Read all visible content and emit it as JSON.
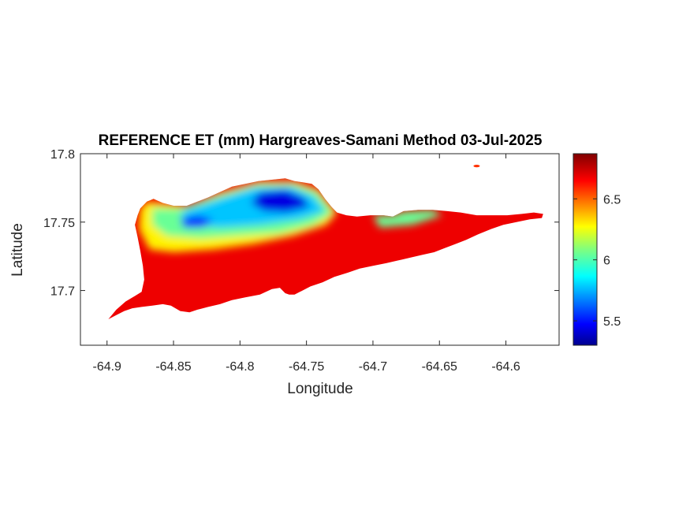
{
  "map": {
    "title": "REFERENCE ET (mm) Hargreaves-Samani Method  03-Jul-2025",
    "xlabel": "Longitude",
    "ylabel": "Latitude",
    "xlim": [
      -64.92,
      -64.56
    ],
    "ylim": [
      17.66,
      17.8
    ],
    "xticks": [
      -64.9,
      -64.85,
      -64.8,
      -64.75,
      -64.7,
      -64.65,
      -64.6
    ],
    "xtick_labels": [
      "-64.9",
      "-64.85",
      "-64.8",
      "-64.75",
      "-64.7",
      "-64.65",
      "-64.6"
    ],
    "yticks": [
      17.7,
      17.75,
      17.8
    ],
    "ytick_labels": [
      "17.7",
      "17.75",
      "17.8"
    ],
    "colormap": "jet",
    "colorbar": {
      "clim": [
        5.3,
        6.87
      ],
      "ticks": [
        5.5,
        6,
        6.5
      ],
      "tick_labels": [
        "5.5",
        "6",
        "6.5"
      ]
    },
    "island_outline": [
      [
        -64.899,
        17.679
      ],
      [
        -64.893,
        17.686
      ],
      [
        -64.886,
        17.692
      ],
      [
        -64.879,
        17.696
      ],
      [
        -64.874,
        17.699
      ],
      [
        -64.872,
        17.708
      ],
      [
        -64.873,
        17.718
      ],
      [
        -64.875,
        17.729
      ],
      [
        -64.877,
        17.739
      ],
      [
        -64.879,
        17.748
      ],
      [
        -64.877,
        17.755
      ],
      [
        -64.875,
        17.76
      ],
      [
        -64.87,
        17.765
      ],
      [
        -64.865,
        17.767
      ],
      [
        -64.858,
        17.764
      ],
      [
        -64.85,
        17.762
      ],
      [
        -64.84,
        17.762
      ],
      [
        -64.832,
        17.765
      ],
      [
        -64.824,
        17.768
      ],
      [
        -64.815,
        17.772
      ],
      [
        -64.806,
        17.776
      ],
      [
        -64.796,
        17.778
      ],
      [
        -64.786,
        17.78
      ],
      [
        -64.776,
        17.781
      ],
      [
        -64.766,
        17.782
      ],
      [
        -64.759,
        17.78
      ],
      [
        -64.752,
        17.779
      ],
      [
        -64.746,
        17.778
      ],
      [
        -64.741,
        17.774
      ],
      [
        -64.736,
        17.767
      ],
      [
        -64.731,
        17.761
      ],
      [
        -64.727,
        17.757
      ],
      [
        -64.72,
        17.755
      ],
      [
        -64.712,
        17.754
      ],
      [
        -64.702,
        17.755
      ],
      [
        -64.692,
        17.755
      ],
      [
        -64.685,
        17.754
      ],
      [
        -64.677,
        17.758
      ],
      [
        -64.666,
        17.759
      ],
      [
        -64.655,
        17.759
      ],
      [
        -64.644,
        17.758
      ],
      [
        -64.634,
        17.757
      ],
      [
        -64.622,
        17.755
      ],
      [
        -64.61,
        17.755
      ],
      [
        -64.599,
        17.755
      ],
      [
        -64.588,
        17.756
      ],
      [
        -64.579,
        17.757
      ],
      [
        -64.572,
        17.756
      ],
      [
        -64.573,
        17.753
      ],
      [
        -64.582,
        17.752
      ],
      [
        -64.592,
        17.75
      ],
      [
        -64.602,
        17.748
      ],
      [
        -64.611,
        17.745
      ],
      [
        -64.621,
        17.741
      ],
      [
        -64.63,
        17.737
      ],
      [
        -64.638,
        17.734
      ],
      [
        -64.646,
        17.731
      ],
      [
        -64.654,
        17.728
      ],
      [
        -64.663,
        17.726
      ],
      [
        -64.672,
        17.724
      ],
      [
        -64.681,
        17.722
      ],
      [
        -64.69,
        17.72
      ],
      [
        -64.7,
        17.718
      ],
      [
        -64.71,
        17.716
      ],
      [
        -64.719,
        17.713
      ],
      [
        -64.729,
        17.71
      ],
      [
        -64.738,
        17.706
      ],
      [
        -64.747,
        17.703
      ],
      [
        -64.753,
        17.7
      ],
      [
        -64.759,
        17.697
      ],
      [
        -64.763,
        17.697
      ],
      [
        -64.766,
        17.698
      ],
      [
        -64.77,
        17.702
      ],
      [
        -64.776,
        17.701
      ],
      [
        -64.785,
        17.697
      ],
      [
        -64.796,
        17.695
      ],
      [
        -64.806,
        17.693
      ],
      [
        -64.815,
        17.69
      ],
      [
        -64.824,
        17.688
      ],
      [
        -64.832,
        17.686
      ],
      [
        -64.838,
        17.684
      ],
      [
        -64.845,
        17.685
      ],
      [
        -64.852,
        17.689
      ],
      [
        -64.858,
        17.69
      ],
      [
        -64.866,
        17.689
      ],
      [
        -64.874,
        17.688
      ],
      [
        -64.881,
        17.687
      ],
      [
        -64.887,
        17.685
      ],
      [
        -64.893,
        17.682
      ],
      [
        -64.899,
        17.679
      ]
    ],
    "et_zones": [
      {
        "value": 6.3,
        "polygon": [
          [
            -64.875,
            17.76
          ],
          [
            -64.87,
            17.765
          ],
          [
            -64.858,
            17.764
          ],
          [
            -64.84,
            17.762
          ],
          [
            -64.815,
            17.772
          ],
          [
            -64.786,
            17.78
          ],
          [
            -64.759,
            17.78
          ],
          [
            -64.741,
            17.774
          ],
          [
            -64.727,
            17.757
          ],
          [
            -64.735,
            17.748
          ],
          [
            -64.76,
            17.74
          ],
          [
            -64.79,
            17.734
          ],
          [
            -64.82,
            17.73
          ],
          [
            -64.85,
            17.728
          ],
          [
            -64.868,
            17.73
          ],
          [
            -64.876,
            17.745
          ]
        ]
      },
      {
        "value": 6.05,
        "polygon": [
          [
            -64.866,
            17.76
          ],
          [
            -64.845,
            17.76
          ],
          [
            -64.815,
            17.77
          ],
          [
            -64.786,
            17.778
          ],
          [
            -64.76,
            17.778
          ],
          [
            -64.742,
            17.772
          ],
          [
            -64.73,
            17.757
          ],
          [
            -64.745,
            17.748
          ],
          [
            -64.77,
            17.742
          ],
          [
            -64.8,
            17.74
          ],
          [
            -64.83,
            17.738
          ],
          [
            -64.855,
            17.74
          ],
          [
            -64.866,
            17.748
          ]
        ]
      },
      {
        "value": 5.8,
        "polygon": [
          [
            -64.845,
            17.757
          ],
          [
            -64.818,
            17.766
          ],
          [
            -64.79,
            17.775
          ],
          [
            -64.762,
            17.776
          ],
          [
            -64.745,
            17.769
          ],
          [
            -64.736,
            17.758
          ],
          [
            -64.755,
            17.752
          ],
          [
            -64.785,
            17.748
          ],
          [
            -64.815,
            17.746
          ],
          [
            -64.84,
            17.748
          ]
        ]
      },
      {
        "value": 5.45,
        "polygon": [
          [
            -64.785,
            17.772
          ],
          [
            -64.766,
            17.774
          ],
          [
            -64.752,
            17.768
          ],
          [
            -64.748,
            17.761
          ],
          [
            -64.765,
            17.757
          ],
          [
            -64.782,
            17.758
          ],
          [
            -64.792,
            17.764
          ]
        ]
      },
      {
        "value": 5.55,
        "polygon": [
          [
            -64.845,
            17.752
          ],
          [
            -64.832,
            17.755
          ],
          [
            -64.82,
            17.752
          ],
          [
            -64.828,
            17.746
          ],
          [
            -64.842,
            17.746
          ]
        ]
      },
      {
        "value": 6.05,
        "polygon": [
          [
            -64.7,
            17.755
          ],
          [
            -64.685,
            17.755
          ],
          [
            -64.677,
            17.758
          ],
          [
            -64.655,
            17.759
          ],
          [
            -64.648,
            17.755
          ],
          [
            -64.67,
            17.748
          ],
          [
            -64.695,
            17.746
          ]
        ]
      }
    ],
    "islets": [
      {
        "lon": -64.622,
        "lat": 17.791,
        "value": 6.6
      }
    ]
  }
}
